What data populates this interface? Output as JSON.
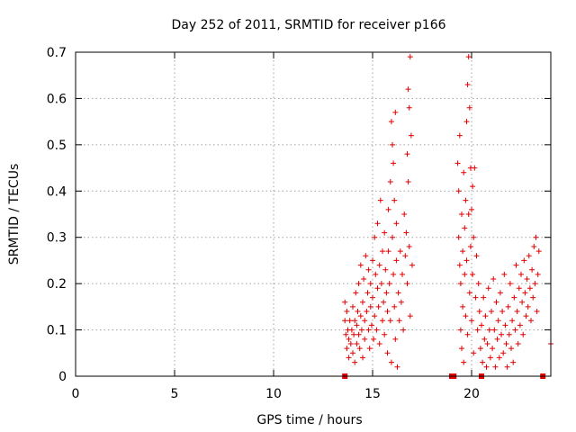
{
  "chart_data": {
    "type": "scatter",
    "title": "Day 252 of 2011, SRMTID for receiver p166",
    "xlabel": "GPS time / hours",
    "ylabel": "SRMTID / TECUs",
    "xlim": [
      0,
      24
    ],
    "ylim": [
      0,
      0.7
    ],
    "grid": true,
    "color": "#e00000",
    "marker": "plus",
    "xticks": [
      0,
      5,
      10,
      15,
      20
    ],
    "xtick_labels": [
      "0",
      "5",
      "10",
      "15",
      "20"
    ],
    "yticks": [
      0,
      0.1,
      0.2,
      0.3,
      0.4,
      0.5,
      0.6,
      0.7
    ],
    "ytick_labels": [
      "0",
      "0.1",
      "0.2",
      "0.3",
      "0.4",
      "0.5",
      "0.6",
      "0.7"
    ],
    "series": [
      {
        "name": "SRMTID",
        "points": [
          [
            13.6,
            0.16
          ],
          [
            13.6,
            0.12
          ],
          [
            13.65,
            0.09
          ],
          [
            13.7,
            0.06
          ],
          [
            13.7,
            0.14
          ],
          [
            13.75,
            0.1
          ],
          [
            13.8,
            0.08
          ],
          [
            13.8,
            0.04
          ],
          [
            13.85,
            0.12
          ],
          [
            13.9,
            0.07
          ],
          [
            13.95,
            0.1
          ],
          [
            14.0,
            0.05
          ],
          [
            14.0,
            0.15
          ],
          [
            14.05,
            0.09
          ],
          [
            14.1,
            0.12
          ],
          [
            14.1,
            0.03
          ],
          [
            14.15,
            0.18
          ],
          [
            14.2,
            0.11
          ],
          [
            14.2,
            0.07
          ],
          [
            14.25,
            0.14
          ],
          [
            14.3,
            0.09
          ],
          [
            14.3,
            0.2
          ],
          [
            14.35,
            0.06
          ],
          [
            14.4,
            0.13
          ],
          [
            14.4,
            0.24
          ],
          [
            14.45,
            0.1
          ],
          [
            14.5,
            0.16
          ],
          [
            14.5,
            0.04
          ],
          [
            14.55,
            0.21
          ],
          [
            14.6,
            0.12
          ],
          [
            14.6,
            0.08
          ],
          [
            14.65,
            0.26
          ],
          [
            14.7,
            0.14
          ],
          [
            14.75,
            0.18
          ],
          [
            14.8,
            0.1
          ],
          [
            14.8,
            0.23
          ],
          [
            14.85,
            0.06
          ],
          [
            14.9,
            0.15
          ],
          [
            14.9,
            0.2
          ],
          [
            14.95,
            0.11
          ],
          [
            15.0,
            0.25
          ],
          [
            15.0,
            0.17
          ],
          [
            15.05,
            0.08
          ],
          [
            15.1,
            0.3
          ],
          [
            15.1,
            0.13
          ],
          [
            15.15,
            0.22
          ],
          [
            15.2,
            0.1
          ],
          [
            15.25,
            0.19
          ],
          [
            15.25,
            0.33
          ],
          [
            15.3,
            0.15
          ],
          [
            15.35,
            0.24
          ],
          [
            15.35,
            0.07
          ],
          [
            15.4,
            0.38
          ],
          [
            15.45,
            0.2
          ],
          [
            15.5,
            0.12
          ],
          [
            15.5,
            0.27
          ],
          [
            15.55,
            0.16
          ],
          [
            15.6,
            0.31
          ],
          [
            15.6,
            0.09
          ],
          [
            15.65,
            0.23
          ],
          [
            15.7,
            0.18
          ],
          [
            15.75,
            0.05
          ],
          [
            15.75,
            0.14
          ],
          [
            15.8,
            0.36
          ],
          [
            15.8,
            0.27
          ],
          [
            15.85,
            0.2
          ],
          [
            15.9,
            0.42
          ],
          [
            15.9,
            0.12
          ],
          [
            15.95,
            0.03
          ],
          [
            15.95,
            0.55
          ],
          [
            16.0,
            0.5
          ],
          [
            16.0,
            0.3
          ],
          [
            16.05,
            0.46
          ],
          [
            16.05,
            0.22
          ],
          [
            16.1,
            0.38
          ],
          [
            16.1,
            0.15
          ],
          [
            16.15,
            0.57
          ],
          [
            16.15,
            0.08
          ],
          [
            16.2,
            0.33
          ],
          [
            16.2,
            0.25
          ],
          [
            16.25,
            0.02
          ],
          [
            16.3,
            0.18
          ],
          [
            16.35,
            0.12
          ],
          [
            16.4,
            0.27
          ],
          [
            16.45,
            0.16
          ],
          [
            16.5,
            0.22
          ],
          [
            16.55,
            0.1
          ],
          [
            16.6,
            0.35
          ],
          [
            16.65,
            0.26
          ],
          [
            16.7,
            0.31
          ],
          [
            16.75,
            0.48
          ],
          [
            16.75,
            0.2
          ],
          [
            16.8,
            0.62
          ],
          [
            16.8,
            0.42
          ],
          [
            16.85,
            0.58
          ],
          [
            16.85,
            0.28
          ],
          [
            16.9,
            0.69
          ],
          [
            16.9,
            0.13
          ],
          [
            16.95,
            0.52
          ],
          [
            17.0,
            0.24
          ],
          [
            19.3,
            0.46
          ],
          [
            19.35,
            0.4
          ],
          [
            19.35,
            0.3
          ],
          [
            19.4,
            0.52
          ],
          [
            19.4,
            0.24
          ],
          [
            19.45,
            0.2
          ],
          [
            19.45,
            0.1
          ],
          [
            19.5,
            0.35
          ],
          [
            19.5,
            0.06
          ],
          [
            19.55,
            0.27
          ],
          [
            19.55,
            0.15
          ],
          [
            19.6,
            0.44
          ],
          [
            19.6,
            0.03
          ],
          [
            19.65,
            0.32
          ],
          [
            19.65,
            0.22
          ],
          [
            19.7,
            0.13
          ],
          [
            19.7,
            0.38
          ],
          [
            19.75,
            0.55
          ],
          [
            19.75,
            0.25
          ],
          [
            19.8,
            0.63
          ],
          [
            19.8,
            0.09
          ],
          [
            19.85,
            0.69
          ],
          [
            19.85,
            0.35
          ],
          [
            19.9,
            0.58
          ],
          [
            19.9,
            0.18
          ],
          [
            19.95,
            0.45
          ],
          [
            19.95,
            0.28
          ],
          [
            20.0,
            0.36
          ],
          [
            20.0,
            0.12
          ],
          [
            20.05,
            0.41
          ],
          [
            20.05,
            0.22
          ],
          [
            20.1,
            0.3
          ],
          [
            20.1,
            0.05
          ],
          [
            20.15,
            0.45
          ],
          [
            20.2,
            0.17
          ],
          [
            20.25,
            0.26
          ],
          [
            20.3,
            0.1
          ],
          [
            20.35,
            0.2
          ],
          [
            20.4,
            0.14
          ],
          [
            20.45,
            0.06
          ],
          [
            20.5,
            0.11
          ],
          [
            20.55,
            0.03
          ],
          [
            20.6,
            0.17
          ],
          [
            20.65,
            0.08
          ],
          [
            20.7,
            0.13
          ],
          [
            20.75,
            0.02
          ],
          [
            20.8,
            0.07
          ],
          [
            20.85,
            0.19
          ],
          [
            20.9,
            0.1
          ],
          [
            20.95,
            0.04
          ],
          [
            21.0,
            0.14
          ],
          [
            21.05,
            0.06
          ],
          [
            21.1,
            0.21
          ],
          [
            21.15,
            0.1
          ],
          [
            21.2,
            0.02
          ],
          [
            21.25,
            0.16
          ],
          [
            21.3,
            0.08
          ],
          [
            21.35,
            0.12
          ],
          [
            21.4,
            0.04
          ],
          [
            21.45,
            0.18
          ],
          [
            21.5,
            0.09
          ],
          [
            21.55,
            0.14
          ],
          [
            21.6,
            0.05
          ],
          [
            21.65,
            0.22
          ],
          [
            21.7,
            0.11
          ],
          [
            21.75,
            0.07
          ],
          [
            21.8,
            0.02
          ],
          [
            21.85,
            0.15
          ],
          [
            21.9,
            0.09
          ],
          [
            21.95,
            0.2
          ],
          [
            22.0,
            0.06
          ],
          [
            22.05,
            0.12
          ],
          [
            22.1,
            0.03
          ],
          [
            22.15,
            0.17
          ],
          [
            22.2,
            0.1
          ],
          [
            22.25,
            0.24
          ],
          [
            22.3,
            0.14
          ],
          [
            22.35,
            0.07
          ],
          [
            22.4,
            0.19
          ],
          [
            22.45,
            0.11
          ],
          [
            22.5,
            0.22
          ],
          [
            22.55,
            0.16
          ],
          [
            22.6,
            0.09
          ],
          [
            22.65,
            0.25
          ],
          [
            22.7,
            0.18
          ],
          [
            22.75,
            0.13
          ],
          [
            22.8,
            0.21
          ],
          [
            22.85,
            0.15
          ],
          [
            22.9,
            0.26
          ],
          [
            22.95,
            0.19
          ],
          [
            23.0,
            0.12
          ],
          [
            23.05,
            0.23
          ],
          [
            23.1,
            0.17
          ],
          [
            23.15,
            0.28
          ],
          [
            23.2,
            0.2
          ],
          [
            23.25,
            0.3
          ],
          [
            23.3,
            0.14
          ],
          [
            23.35,
            0.22
          ],
          [
            23.4,
            0.27
          ],
          [
            24.0,
            0.07
          ]
        ]
      }
    ],
    "zero_markers": [
      13.6,
      19.0,
      19.1,
      20.5,
      23.6
    ]
  }
}
